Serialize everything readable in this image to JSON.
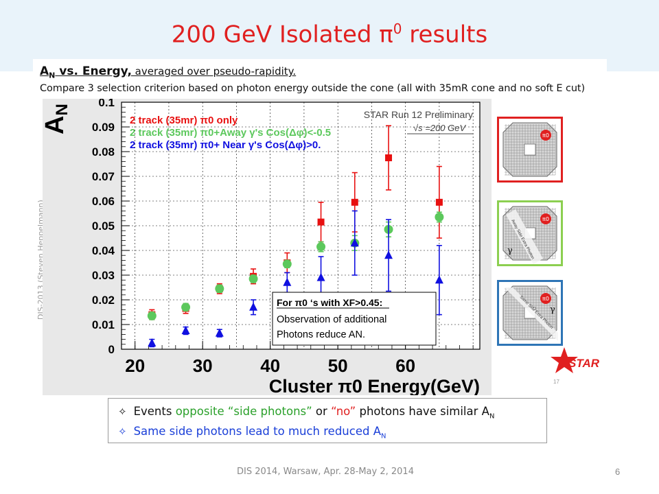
{
  "slide": {
    "title": "200 GeV Isolated π",
    "title_sup": "0",
    "title_tail": " results",
    "subtitle_a": "A",
    "subtitle_n": "N",
    "subtitle_bold": " vs. Energy,",
    "subtitle_rest": "  averaged over pseudo-rapidity.",
    "subtitle_line2": "Compare 3 selection criterion  based on photon energy outside the cone (all with 35mR cone and no soft E cut)",
    "credit": "DIS-2013 (Steven Heppelmann)",
    "small_page_note": "17",
    "footer": "DIS  2014,  Warsaw,  Apr.  28-May 2, 2014",
    "page_number": "6"
  },
  "bullets": {
    "b1_star": "✧",
    "b1_a": "Events ",
    "b1_green": "opposite “side photons”",
    "b1_b": " or ",
    "b1_red": "“no”",
    "b1_c": " photons have similar A",
    "b1_sub": "N",
    "b2_star": "✧",
    "b2_text": "Same side photons lead to much reduced A",
    "b2_sub": "N"
  },
  "thumbnails": [
    {
      "border": "#e02020",
      "pi_label": "π0",
      "gamma": "",
      "band": ""
    },
    {
      "border": "#8ccf50",
      "pi_label": "π0",
      "gamma": "γ",
      "band": "Away Side Extra Photon"
    },
    {
      "border": "#2e75b6",
      "pi_label": "π0",
      "gamma": "γ",
      "band": "Same Side Extra Photon"
    }
  ],
  "logo": {
    "text": "STAR",
    "color": "#e02020"
  },
  "chart_data": {
    "type": "scatter",
    "xlabel": "Cluster π0 Energy(GeV)",
    "ylabel": "AN",
    "xlim": [
      18,
      71
    ],
    "ylim": [
      0,
      0.1
    ],
    "xticks": [
      20,
      30,
      40,
      50,
      60
    ],
    "yticks": [
      0,
      0.01,
      0.02,
      0.03,
      0.04,
      0.05,
      0.06,
      0.07,
      0.08,
      0.09,
      0.1
    ],
    "ytick_labels": [
      "0",
      "0.01",
      "0.02",
      "0.03",
      "0.04",
      "0.05",
      "0.06",
      "0.07",
      "0.08",
      "0.09",
      "0.1"
    ],
    "grid": true,
    "legend_position": "top-left",
    "legend": [
      "2 track (35mr) π0 only",
      "2 track (35mr) π0+Away γ's Cos(Δφ)<-0.5",
      "2 track (35mr) π0+ Near γ's Cos(Δφ)>0."
    ],
    "annotation_prelim": "STAR Run 12 Preliminary",
    "annotation_energy": "√s =200 GeV",
    "note_title": "For π0 ‘s with XF>0.45:",
    "note_line1": "Observation of additional",
    "note_line2": "Photons reduce AN.",
    "series": [
      {
        "name": "2 track (35mr) π0 only",
        "color": "#e81010",
        "marker": "square",
        "x": [
          22.5,
          27.5,
          32.5,
          37.5,
          42.5,
          47.5,
          52.5,
          57.5,
          65
        ],
        "y": [
          0.014,
          0.0165,
          0.0245,
          0.0295,
          0.035,
          0.0515,
          0.0595,
          0.0775,
          0.0595
        ],
        "err": [
          0.002,
          0.002,
          0.002,
          0.003,
          0.004,
          0.008,
          0.012,
          0.013,
          0.0145
        ]
      },
      {
        "name": "2 track (35mr) π0+Away γ's Cos(Δφ)<-0.5",
        "color": "#5cc85c",
        "marker": "circle",
        "x": [
          22.5,
          27.5,
          32.5,
          37.5,
          42.5,
          47.5,
          52.5,
          57.5,
          65
        ],
        "y": [
          0.0135,
          0.017,
          0.0245,
          0.0285,
          0.0345,
          0.0415,
          0.043,
          0.0485,
          0.0535
        ],
        "err": [
          0.0015,
          0.0015,
          0.0015,
          0.0015,
          0.0015,
          0.002,
          0.003,
          0.003,
          0.002
        ]
      },
      {
        "name": "2 track (35mr) π0+ Near γ's Cos(Δφ)>0.",
        "color": "#1010e0",
        "marker": "triangle",
        "x": [
          22.5,
          27.5,
          32.5,
          37.5,
          42.5,
          47.5,
          52.5,
          57.5,
          65
        ],
        "y": [
          0.0025,
          0.0075,
          0.0065,
          0.017,
          0.027,
          0.029,
          0.043,
          0.038,
          0.028
        ],
        "err": [
          0.0015,
          0.0015,
          0.0015,
          0.003,
          0.004,
          0.0085,
          0.013,
          0.0145,
          0.014
        ]
      }
    ]
  }
}
